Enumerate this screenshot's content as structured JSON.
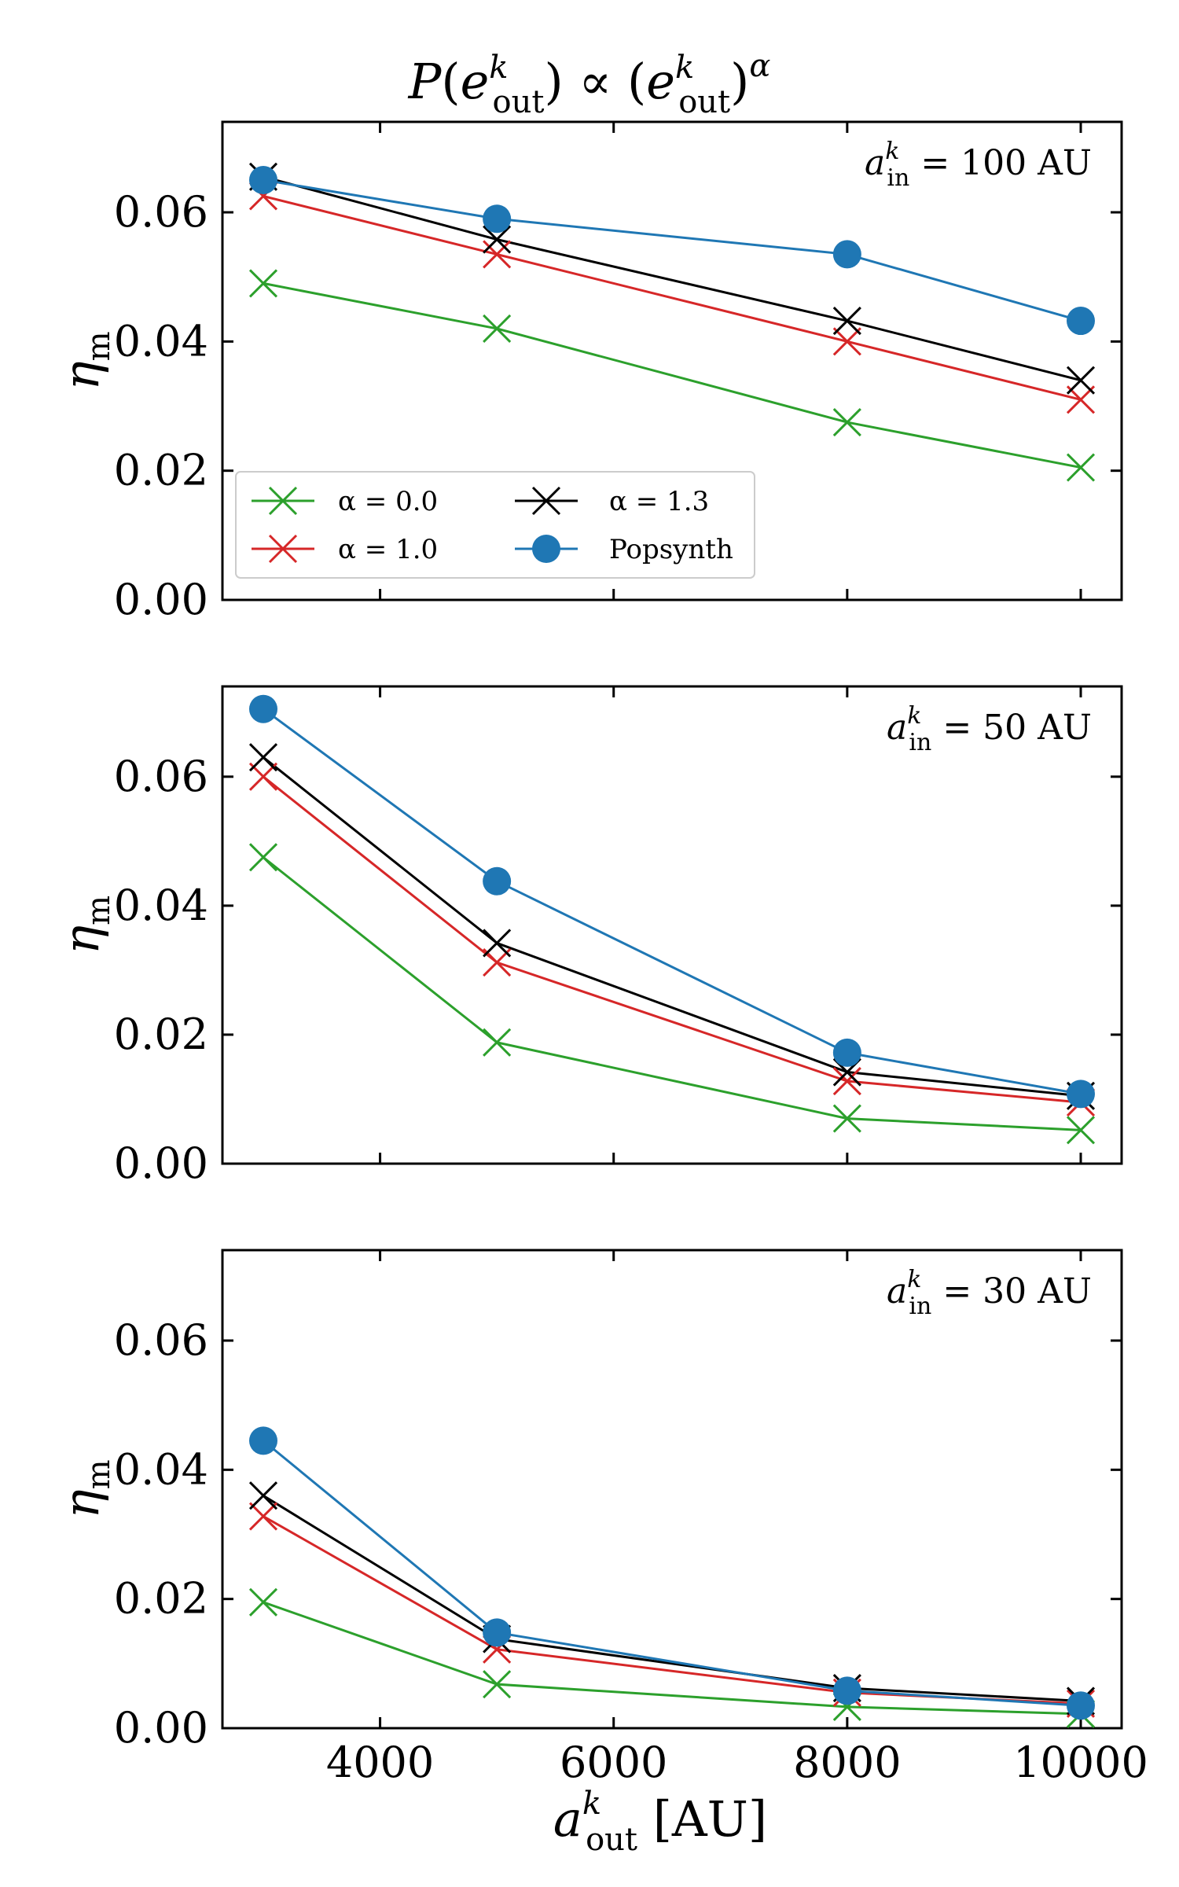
{
  "figure": {
    "title": "P(e_out^k) ∝ (e_out^k)^α",
    "xlabel": "a_out^k [AU]",
    "ylabel": "η_m"
  },
  "legend": {
    "entries": [
      "α = 0.0",
      "α = 1.3",
      "α = 1.0",
      "Popsynth"
    ]
  },
  "colors": {
    "alpha_0": "#2ca02c",
    "alpha_1": "#d62728",
    "alpha_13": "#000000",
    "popsynth": "#1f77b4"
  },
  "chart_data": [
    {
      "type": "line",
      "annotation": "a_in^k = 100 AU",
      "x": [
        3000,
        5000,
        8000,
        10000
      ],
      "xlim": [
        2650,
        10350
      ],
      "ylim": [
        0,
        0.074
      ],
      "yticks": [
        "0.00",
        "0.02",
        "0.04",
        "0.06"
      ],
      "xticks": [
        "4000",
        "6000",
        "8000",
        "10000"
      ],
      "series": [
        {
          "name": "α = 0.0",
          "marker": "x",
          "values": [
            0.049,
            0.042,
            0.0275,
            0.0205
          ]
        },
        {
          "name": "α = 1.0",
          "marker": "x",
          "values": [
            0.0625,
            0.0535,
            0.04,
            0.031
          ]
        },
        {
          "name": "α = 1.3",
          "marker": "x",
          "values": [
            0.0655,
            0.0558,
            0.0432,
            0.034
          ]
        },
        {
          "name": "Popsynth",
          "marker": "o",
          "values": [
            0.065,
            0.059,
            0.0535,
            0.0432
          ]
        }
      ]
    },
    {
      "type": "line",
      "annotation": "a_in^k = 50 AU",
      "x": [
        3000,
        5000,
        8000,
        10000
      ],
      "xlim": [
        2650,
        10350
      ],
      "ylim": [
        0,
        0.074
      ],
      "yticks": [
        "0.00",
        "0.02",
        "0.04",
        "0.06"
      ],
      "xticks": [
        "4000",
        "6000",
        "8000",
        "10000"
      ],
      "series": [
        {
          "name": "α = 0.0",
          "marker": "x",
          "values": [
            0.0475,
            0.0188,
            0.007,
            0.0052
          ]
        },
        {
          "name": "α = 1.0",
          "marker": "x",
          "values": [
            0.06,
            0.0312,
            0.0128,
            0.0095
          ]
        },
        {
          "name": "α = 1.3",
          "marker": "x",
          "values": [
            0.063,
            0.0342,
            0.0142,
            0.0105
          ]
        },
        {
          "name": "Popsynth",
          "marker": "o",
          "values": [
            0.0705,
            0.0438,
            0.0172,
            0.0108
          ]
        }
      ]
    },
    {
      "type": "line",
      "annotation": "a_in^k = 30 AU",
      "x": [
        3000,
        5000,
        8000,
        10000
      ],
      "xlim": [
        2650,
        10350
      ],
      "ylim": [
        0,
        0.074
      ],
      "yticks": [
        "0.00",
        "0.02",
        "0.04",
        "0.06"
      ],
      "xticks": [
        "4000",
        "6000",
        "8000",
        "10000"
      ],
      "series": [
        {
          "name": "α = 0.0",
          "marker": "x",
          "values": [
            0.0195,
            0.0068,
            0.0033,
            0.0022
          ]
        },
        {
          "name": "α = 1.0",
          "marker": "x",
          "values": [
            0.0328,
            0.0122,
            0.0055,
            0.0038
          ]
        },
        {
          "name": "α = 1.3",
          "marker": "x",
          "values": [
            0.036,
            0.0138,
            0.0062,
            0.0042
          ]
        },
        {
          "name": "Popsynth",
          "marker": "o",
          "values": [
            0.0445,
            0.0148,
            0.0058,
            0.0035
          ]
        }
      ]
    }
  ]
}
